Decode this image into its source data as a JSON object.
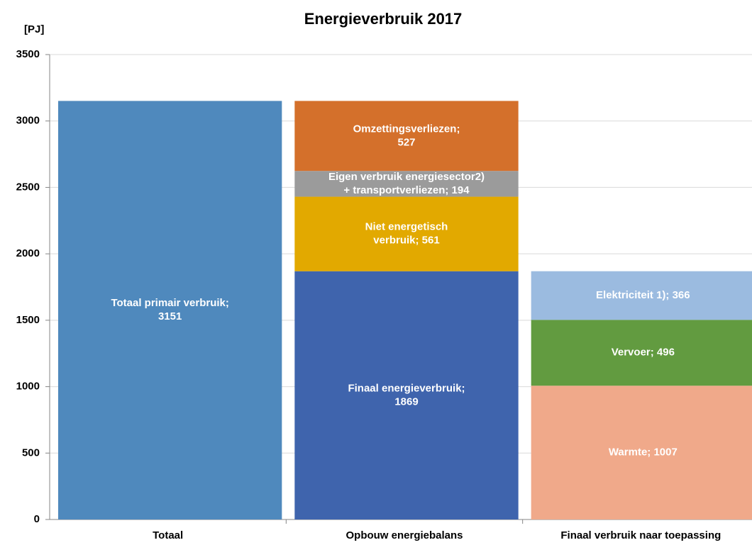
{
  "chart_data": {
    "type": "stacked_bar",
    "title": "Energieverbruik 2017",
    "y_label": "[PJ]",
    "categories": [
      "Totaal",
      "Opbouw energiebalans",
      "Finaal verbruik naar toepassing"
    ],
    "ylim": [
      0,
      3500
    ],
    "yticks": [
      0,
      500,
      1000,
      1500,
      2000,
      2500,
      3000,
      3500
    ],
    "grid": true,
    "series": [
      {
        "color": "#4f89bd",
        "values": [
          3151,
          null,
          null
        ],
        "value_labels": [
          [
            "Totaal primair verbruik;",
            "3151"
          ],
          null,
          null
        ]
      },
      {
        "color": "#3f64ad",
        "values": [
          null,
          1869,
          null
        ],
        "value_labels": [
          null,
          [
            "Finaal  energieverbruik;",
            "1869"
          ],
          null
        ]
      },
      {
        "color": "#e2a900",
        "values": [
          null,
          561,
          null
        ],
        "value_labels": [
          null,
          [
            "Niet energetisch",
            "verbruik; 561"
          ],
          null
        ]
      },
      {
        "color": "#9b9b9b",
        "values": [
          null,
          194,
          null
        ],
        "value_labels": [
          null,
          [
            "Eigen verbruik energiesector2)",
            "+   transportverliezen; 194"
          ],
          null
        ]
      },
      {
        "color": "#d4702b",
        "values": [
          null,
          527,
          null
        ],
        "value_labels": [
          null,
          [
            "Omzettingsverliezen;",
            "527"
          ],
          null
        ]
      },
      {
        "color": "#f0a98a",
        "values": [
          null,
          null,
          1007
        ],
        "value_labels": [
          null,
          null,
          [
            "Warmte; 1007"
          ]
        ]
      },
      {
        "color": "#629b40",
        "values": [
          null,
          null,
          496
        ],
        "value_labels": [
          null,
          null,
          [
            "Vervoer; 496"
          ]
        ]
      },
      {
        "color": "#9bbbe0",
        "values": [
          null,
          null,
          366
        ],
        "value_labels": [
          null,
          null,
          [
            "Elektriciteit 1); 366"
          ]
        ]
      }
    ]
  }
}
